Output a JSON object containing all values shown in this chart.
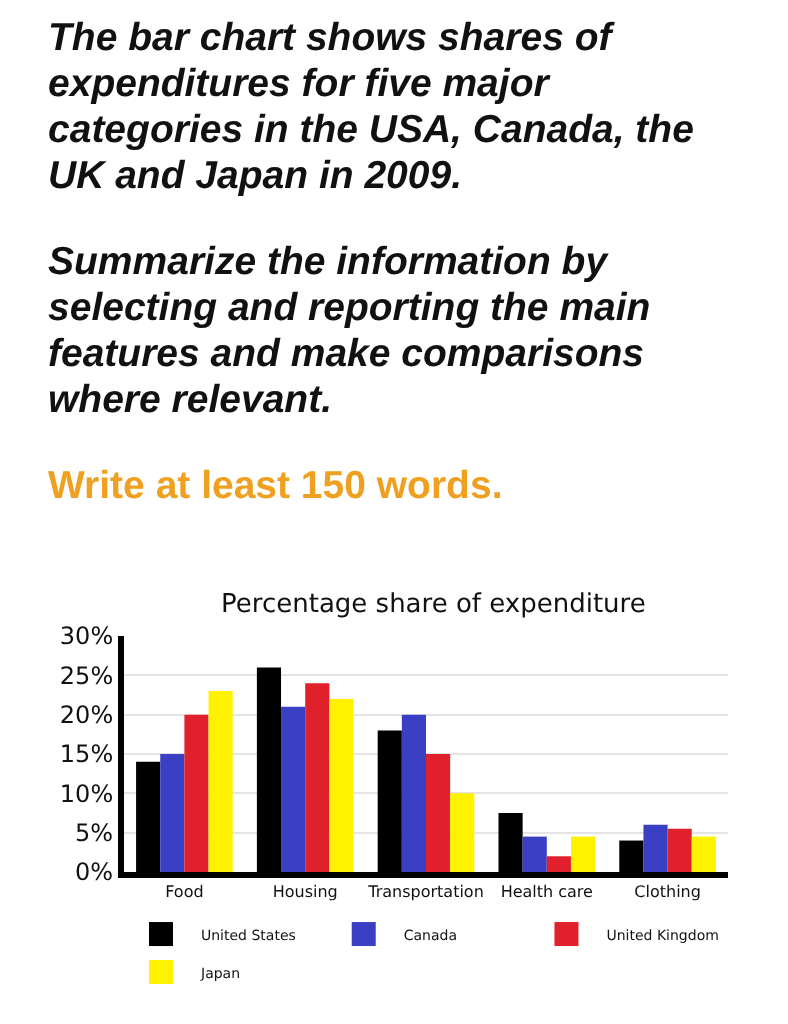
{
  "chart_data": {
    "type": "bar",
    "title": "Percentage share of expenditure",
    "annotations": [
      "The bar chart shows shares of expenditures for five major categories in the USA, Canada, the UK and Japan in 2009.",
      "Summarize the information by selecting and reporting the main features and make comparisons where relevant.",
      "Write at least 150 words."
    ],
    "categories": [
      "Food",
      "Housing",
      "Transportation",
      "Health care",
      "Clothing"
    ],
    "series": [
      {
        "name": "United States",
        "color": "#000000",
        "values": [
          14,
          26,
          18,
          7.5,
          4
        ]
      },
      {
        "name": "Canada",
        "color": "#3b3fc4",
        "values": [
          15,
          21,
          20,
          4.5,
          6
        ]
      },
      {
        "name": "United Kingdom",
        "color": "#e0202a",
        "values": [
          20,
          24,
          15,
          2,
          5.5
        ]
      },
      {
        "name": "Japan",
        "color": "#fff200",
        "values": [
          23,
          22,
          10,
          4.5,
          4.5
        ]
      }
    ],
    "ylim": [
      0,
      30
    ],
    "yticks": [
      {
        "value": 0,
        "label": "0%"
      },
      {
        "value": 5,
        "label": "5%"
      },
      {
        "value": 10,
        "label": "10%"
      },
      {
        "value": 15,
        "label": "15%"
      },
      {
        "value": 20,
        "label": "20%"
      },
      {
        "value": 25,
        "label": "25%"
      },
      {
        "value": 30,
        "label": "30%"
      }
    ],
    "grid": "y",
    "legend": "bottom"
  }
}
